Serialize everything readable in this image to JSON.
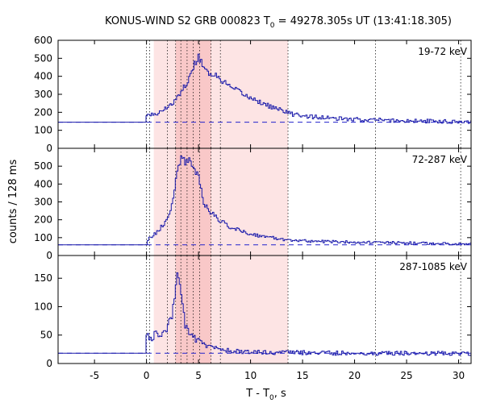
{
  "figure": {
    "title_main": "KONUS-WIND S2 GRB 000823 T",
    "title_sub": "0",
    "title_rest": " = 49278.305s UT (13:41:18.305)",
    "xlabel_main": "T - T",
    "xlabel_sub": "0",
    "xlabel_rest": ", s",
    "ylabel": "counts / 128 ms"
  },
  "colors": {
    "curve": "#1a1aaa",
    "background_line": "#2222cc",
    "shade_outer": "#fde4e4",
    "shade_inner": "#f9c8c8",
    "marker_line": "#000000"
  },
  "chart_data": [
    {
      "type": "line",
      "title": "19-72 keV",
      "xlim": [
        -8.5,
        31.2
      ],
      "ylim": [
        0,
        600
      ],
      "yticks": [
        0,
        100,
        200,
        300,
        400,
        500,
        600
      ],
      "background_level": 145,
      "shaded_regions": [
        [
          0.7,
          13.6
        ],
        [
          2.8,
          6.2
        ]
      ],
      "vertical_markers": [
        0.0,
        0.3,
        2.0,
        2.8,
        3.3,
        3.9,
        4.5,
        5.1,
        6.2,
        7.1,
        13.6,
        22.0,
        30.2
      ],
      "series": [
        {
          "points": [
            [
              -8.5,
              145
            ],
            [
              -5,
              145
            ],
            [
              0,
              145
            ],
            [
              0,
              180
            ],
            [
              1,
              190
            ],
            [
              2,
              230
            ],
            [
              3,
              280
            ],
            [
              4,
              380
            ],
            [
              4.5,
              450
            ],
            [
              5,
              515
            ],
            [
              5.5,
              450
            ],
            [
              6,
              420
            ],
            [
              7,
              390
            ],
            [
              8,
              340
            ],
            [
              9,
              310
            ],
            [
              10,
              280
            ],
            [
              12,
              230
            ],
            [
              14,
              190
            ],
            [
              16,
              175
            ],
            [
              18,
              165
            ],
            [
              20,
              160
            ],
            [
              22,
              158
            ],
            [
              25,
              152
            ],
            [
              28,
              150
            ],
            [
              31,
              148
            ]
          ]
        }
      ]
    },
    {
      "type": "line",
      "title": "72-287 keV",
      "xlim": [
        -8.5,
        31.2
      ],
      "ylim": [
        0,
        600
      ],
      "yticks": [
        0,
        100,
        200,
        300,
        400,
        500
      ],
      "background_level": 60,
      "shaded_regions": [
        [
          0.7,
          13.6
        ],
        [
          2.8,
          6.2
        ]
      ],
      "vertical_markers": [
        0.0,
        0.3,
        2.0,
        2.8,
        3.3,
        3.9,
        4.5,
        5.1,
        6.2,
        7.1,
        13.6,
        22.0,
        30.2
      ],
      "series": [
        {
          "points": [
            [
              -8.5,
              60
            ],
            [
              -5,
              60
            ],
            [
              0,
              60
            ],
            [
              0.3,
              100
            ],
            [
              1,
              130
            ],
            [
              2,
              200
            ],
            [
              2.5,
              300
            ],
            [
              3,
              480
            ],
            [
              3.3,
              550
            ],
            [
              3.8,
              520
            ],
            [
              4.2,
              530
            ],
            [
              4.6,
              490
            ],
            [
              5,
              440
            ],
            [
              5.5,
              300
            ],
            [
              6,
              250
            ],
            [
              7,
              200
            ],
            [
              8,
              160
            ],
            [
              10,
              120
            ],
            [
              12,
              100
            ],
            [
              14,
              85
            ],
            [
              16,
              80
            ],
            [
              20,
              75
            ],
            [
              25,
              70
            ],
            [
              31,
              65
            ]
          ]
        }
      ]
    },
    {
      "type": "line",
      "title": "287-1085 keV",
      "xlim": [
        -8.5,
        31.2
      ],
      "ylim": [
        0,
        190
      ],
      "yticks": [
        0,
        50,
        100,
        150
      ],
      "background_level": 18,
      "shaded_regions": [
        [
          0.7,
          13.6
        ],
        [
          2.8,
          6.2
        ]
      ],
      "vertical_markers": [
        0.0,
        0.3,
        2.0,
        2.8,
        3.3,
        3.9,
        4.5,
        5.1,
        6.2,
        7.1,
        13.6,
        22.0,
        30.2
      ],
      "series": [
        {
          "points": [
            [
              -8.5,
              18
            ],
            [
              -5,
              18
            ],
            [
              0,
              18
            ],
            [
              0,
              50
            ],
            [
              0.5,
              45
            ],
            [
              1,
              55
            ],
            [
              1.5,
              48
            ],
            [
              2,
              60
            ],
            [
              2.5,
              90
            ],
            [
              2.8,
              140
            ],
            [
              3,
              165
            ],
            [
              3.3,
              120
            ],
            [
              3.7,
              70
            ],
            [
              4.2,
              50
            ],
            [
              5,
              40
            ],
            [
              6,
              30
            ],
            [
              8,
              22
            ],
            [
              10,
              20
            ],
            [
              15,
              19
            ],
            [
              20,
              18
            ],
            [
              25,
              18
            ],
            [
              31,
              18
            ]
          ]
        }
      ]
    }
  ],
  "xaxis": {
    "ticks": [
      -5,
      0,
      5,
      10,
      15,
      20,
      25,
      30
    ]
  }
}
